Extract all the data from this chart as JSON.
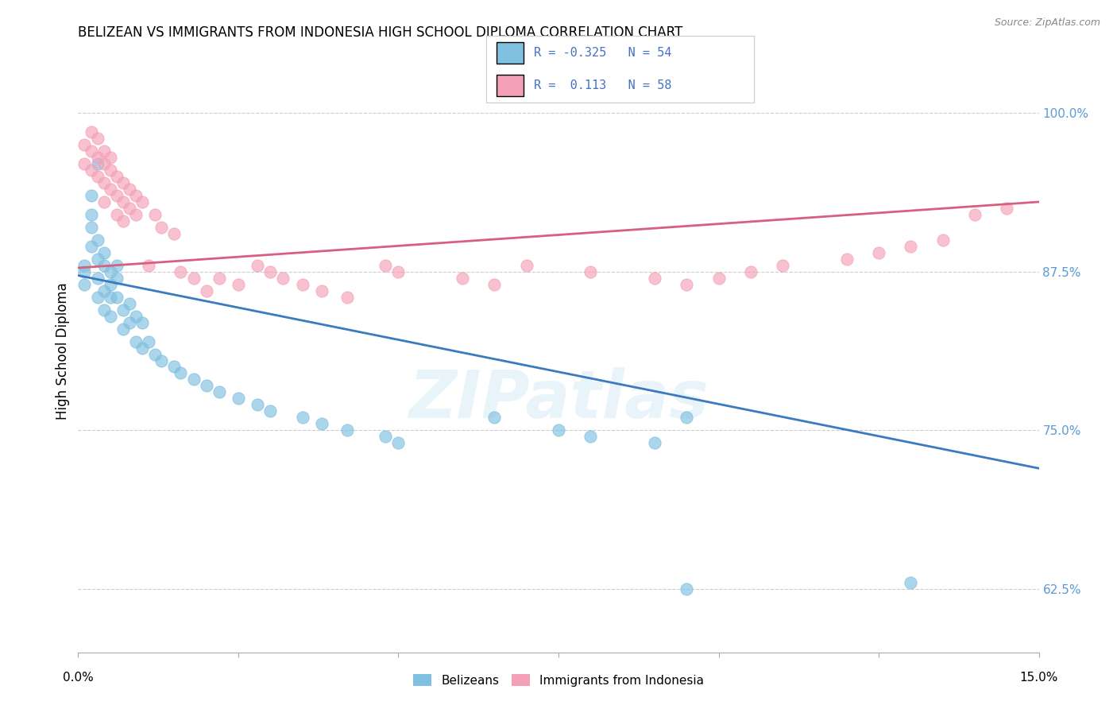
{
  "title": "BELIZEAN VS IMMIGRANTS FROM INDONESIA HIGH SCHOOL DIPLOMA CORRELATION CHART",
  "source": "Source: ZipAtlas.com",
  "ylabel": "High School Diploma",
  "ytick_values": [
    0.625,
    0.75,
    0.875,
    1.0
  ],
  "ytick_labels": [
    "62.5%",
    "75.0%",
    "87.5%",
    "100.0%"
  ],
  "xlim": [
    0.0,
    0.15
  ],
  "ylim": [
    0.575,
    1.05
  ],
  "belizean_color": "#7fbfdf",
  "indonesia_color": "#f4a0b8",
  "trendline_belizean_color": "#3a7abf",
  "trendline_indonesia_color": "#d95f80",
  "background_color": "#ffffff",
  "watermark": "ZIPatlas",
  "trendline_belizean_x0": 0.0,
  "trendline_belizean_y0": 0.872,
  "trendline_belizean_x1": 0.15,
  "trendline_belizean_y1": 0.72,
  "trendline_indonesia_x0": 0.0,
  "trendline_indonesia_y0": 0.878,
  "trendline_indonesia_x1": 0.15,
  "trendline_indonesia_y1": 0.93,
  "belizean_x": [
    0.001,
    0.001,
    0.001,
    0.002,
    0.002,
    0.002,
    0.002,
    0.003,
    0.003,
    0.003,
    0.003,
    0.003,
    0.004,
    0.004,
    0.004,
    0.004,
    0.005,
    0.005,
    0.005,
    0.005,
    0.006,
    0.006,
    0.006,
    0.007,
    0.007,
    0.008,
    0.008,
    0.009,
    0.009,
    0.01,
    0.01,
    0.011,
    0.012,
    0.013,
    0.015,
    0.016,
    0.018,
    0.02,
    0.022,
    0.025,
    0.028,
    0.03,
    0.035,
    0.038,
    0.042,
    0.048,
    0.05,
    0.065,
    0.075,
    0.08,
    0.09,
    0.095,
    0.095,
    0.13
  ],
  "belizean_y": [
    0.875,
    0.88,
    0.865,
    0.92,
    0.935,
    0.91,
    0.895,
    0.9,
    0.885,
    0.87,
    0.855,
    0.96,
    0.89,
    0.88,
    0.86,
    0.845,
    0.875,
    0.865,
    0.855,
    0.84,
    0.88,
    0.87,
    0.855,
    0.845,
    0.83,
    0.85,
    0.835,
    0.84,
    0.82,
    0.835,
    0.815,
    0.82,
    0.81,
    0.805,
    0.8,
    0.795,
    0.79,
    0.785,
    0.78,
    0.775,
    0.77,
    0.765,
    0.76,
    0.755,
    0.75,
    0.745,
    0.74,
    0.76,
    0.75,
    0.745,
    0.74,
    0.76,
    0.625,
    0.63
  ],
  "indonesia_x": [
    0.001,
    0.001,
    0.002,
    0.002,
    0.002,
    0.003,
    0.003,
    0.003,
    0.004,
    0.004,
    0.004,
    0.004,
    0.005,
    0.005,
    0.005,
    0.006,
    0.006,
    0.006,
    0.007,
    0.007,
    0.007,
    0.008,
    0.008,
    0.009,
    0.009,
    0.01,
    0.011,
    0.012,
    0.013,
    0.015,
    0.016,
    0.018,
    0.02,
    0.022,
    0.025,
    0.028,
    0.03,
    0.032,
    0.035,
    0.038,
    0.042,
    0.048,
    0.05,
    0.06,
    0.065,
    0.07,
    0.08,
    0.09,
    0.095,
    0.1,
    0.105,
    0.11,
    0.12,
    0.125,
    0.13,
    0.135,
    0.14,
    0.145
  ],
  "indonesia_y": [
    0.975,
    0.96,
    0.97,
    0.955,
    0.985,
    0.965,
    0.95,
    0.98,
    0.96,
    0.945,
    0.97,
    0.93,
    0.955,
    0.94,
    0.965,
    0.95,
    0.935,
    0.92,
    0.945,
    0.93,
    0.915,
    0.94,
    0.925,
    0.935,
    0.92,
    0.93,
    0.88,
    0.92,
    0.91,
    0.905,
    0.875,
    0.87,
    0.86,
    0.87,
    0.865,
    0.88,
    0.875,
    0.87,
    0.865,
    0.86,
    0.855,
    0.88,
    0.875,
    0.87,
    0.865,
    0.88,
    0.875,
    0.87,
    0.865,
    0.87,
    0.875,
    0.88,
    0.885,
    0.89,
    0.895,
    0.9,
    0.92,
    0.925
  ]
}
